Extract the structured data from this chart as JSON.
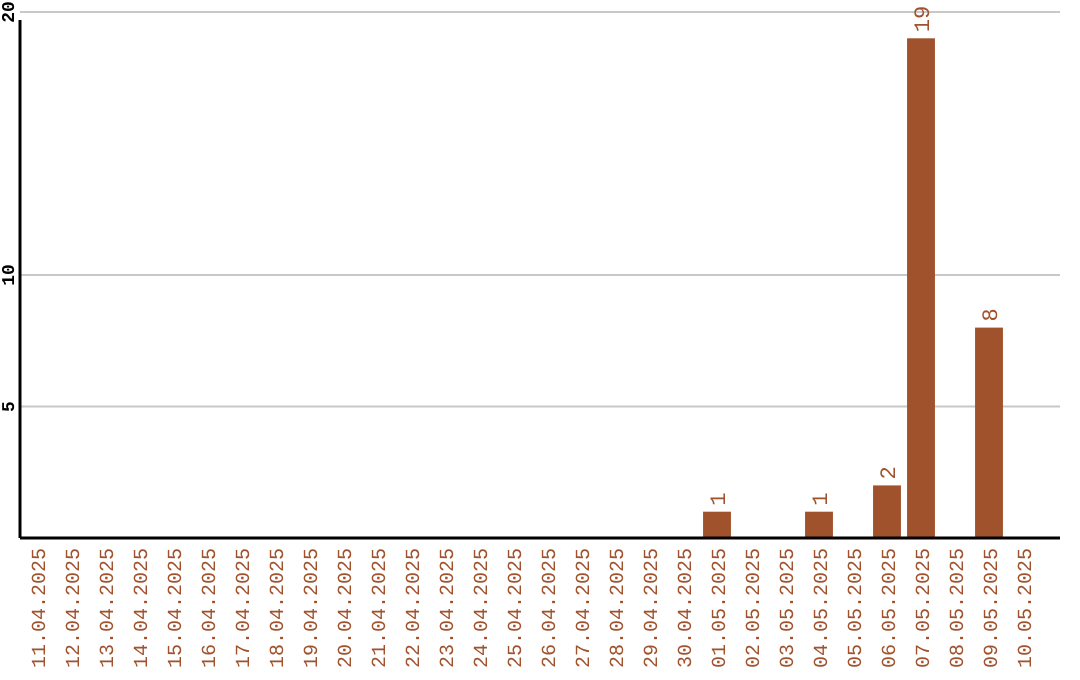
{
  "chart_data": {
    "type": "bar",
    "categories": [
      "11.04.2025",
      "12.04.2025",
      "13.04.2025",
      "14.04.2025",
      "15.04.2025",
      "16.04.2025",
      "17.04.2025",
      "18.04.2025",
      "19.04.2025",
      "20.04.2025",
      "21.04.2025",
      "22.04.2025",
      "23.04.2025",
      "24.04.2025",
      "25.04.2025",
      "26.04.2025",
      "27.04.2025",
      "28.04.2025",
      "29.04.2025",
      "30.04.2025",
      "01.05.2025",
      "02.05.2025",
      "03.05.2025",
      "04.05.2025",
      "05.05.2025",
      "06.05.2025",
      "07.05.2025",
      "08.05.2025",
      "09.05.2025",
      "10.05.2025"
    ],
    "values": [
      0,
      0,
      0,
      0,
      0,
      0,
      0,
      0,
      0,
      0,
      0,
      0,
      0,
      0,
      0,
      0,
      0,
      0,
      0,
      0,
      1,
      0,
      0,
      1,
      0,
      2,
      19,
      0,
      8,
      0
    ],
    "value_labels": [
      null,
      null,
      null,
      null,
      null,
      null,
      null,
      null,
      null,
      null,
      null,
      null,
      null,
      null,
      null,
      null,
      null,
      null,
      null,
      null,
      "1",
      null,
      null,
      "1",
      null,
      "2",
      "19",
      null,
      "8",
      null
    ],
    "color": "#a0522d",
    "ylim": [
      0,
      20
    ],
    "yticks": [
      5,
      10,
      20
    ],
    "grid": "y"
  }
}
